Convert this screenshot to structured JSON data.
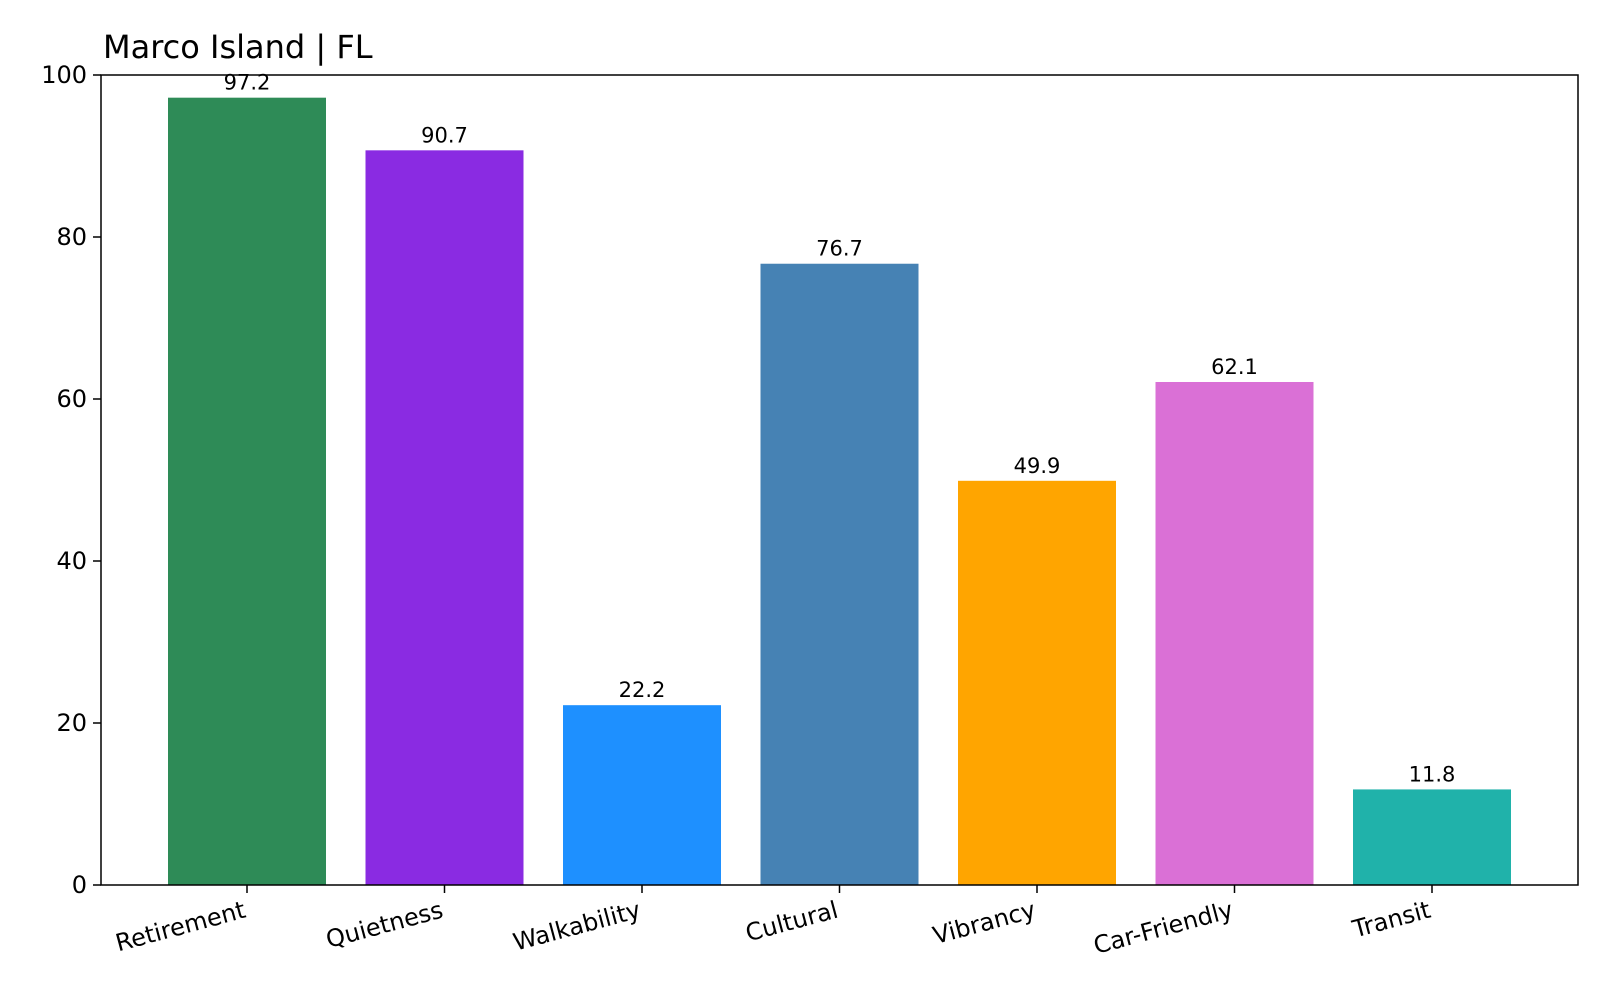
{
  "chart_data": {
    "type": "bar",
    "title": "Marco Island | FL",
    "xlabel": "",
    "ylabel": "",
    "categories": [
      "Retirement",
      "Quietness",
      "Walkability",
      "Cultural",
      "Vibrancy",
      "Car-Friendly",
      "Transit"
    ],
    "values": [
      97.2,
      90.7,
      22.2,
      76.7,
      49.9,
      62.1,
      11.8
    ],
    "value_labels": [
      "97.2",
      "90.7",
      "22.2",
      "76.7",
      "49.9",
      "62.1",
      "11.8"
    ],
    "colors": [
      "#2e8b57",
      "#8a2be2",
      "#1e90ff",
      "#4682b4",
      "#ffa500",
      "#da70d6",
      "#20b2aa"
    ],
    "ylim": [
      0,
      100
    ],
    "yticks": [
      0,
      20,
      40,
      60,
      80,
      100
    ],
    "ytick_labels": [
      "0",
      "20",
      "40",
      "60",
      "80",
      "100"
    ],
    "grid": false,
    "legend": "none"
  }
}
